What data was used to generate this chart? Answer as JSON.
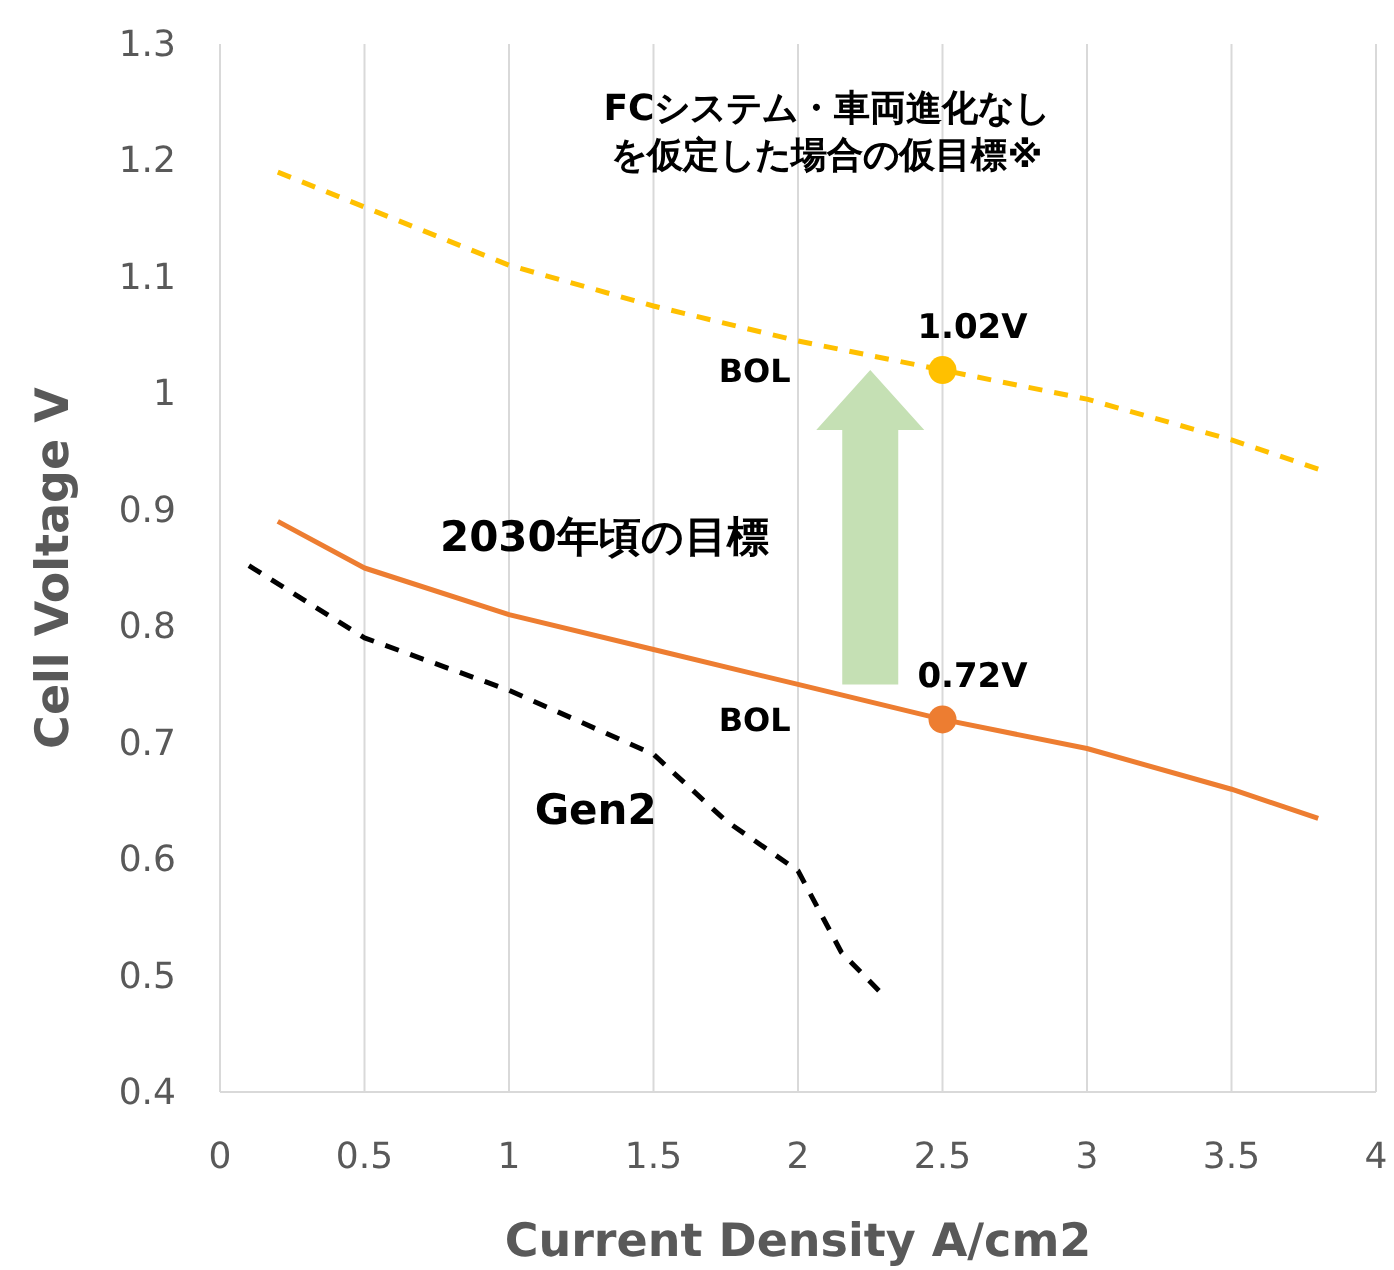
{
  "chart_data": {
    "type": "line",
    "xlabel": "Current Density A/cm2",
    "ylabel": "Cell Voltage V",
    "xlim": [
      0,
      4
    ],
    "ylim": [
      0.4,
      1.3
    ],
    "xticks": [
      0,
      0.5,
      1,
      1.5,
      2,
      2.5,
      3,
      3.5,
      4
    ],
    "yticks": [
      0.4,
      0.5,
      0.6,
      0.7,
      0.8,
      0.9,
      1,
      1.1,
      1.2,
      1.3
    ],
    "grid": "x",
    "series": [
      {
        "color": "#ffc000",
        "line_style": "dashed",
        "x": [
          0.2,
          0.5,
          1,
          1.5,
          2,
          2.5,
          3,
          3.5,
          3.8
        ],
        "values": [
          1.19,
          1.16,
          1.11,
          1.075,
          1.045,
          1.02,
          0.995,
          0.96,
          0.935
        ]
      },
      {
        "name": "2030年頃の目標",
        "color": "#ed7d31",
        "line_style": "solid",
        "x": [
          0.2,
          0.5,
          1,
          1.5,
          2,
          2.5,
          3,
          3.5,
          3.8
        ],
        "values": [
          0.89,
          0.85,
          0.81,
          0.78,
          0.75,
          0.72,
          0.695,
          0.66,
          0.635
        ]
      },
      {
        "name": "Gen2",
        "color": "#000000",
        "line_style": "dashed",
        "x": [
          0.1,
          0.5,
          1,
          1.5,
          1.75,
          2,
          2.15,
          2.28
        ],
        "values": [
          0.852,
          0.79,
          0.745,
          0.69,
          0.633,
          0.59,
          0.52,
          0.487
        ]
      },
      {
        "type": "scatter",
        "color": "#ffc000",
        "marker": "circle",
        "x": [
          2.5
        ],
        "values": [
          1.02
        ],
        "value_labels": [
          "1.02V"
        ]
      },
      {
        "type": "scatter",
        "color": "#ed7d31",
        "marker": "circle",
        "x": [
          2.5
        ],
        "values": [
          0.72
        ],
        "value_labels": [
          "0.72V"
        ]
      }
    ],
    "annotations": [
      "FCシステム・車両進化なしを仮定した場合の仮目標※",
      "BOL",
      "BOL"
    ]
  }
}
